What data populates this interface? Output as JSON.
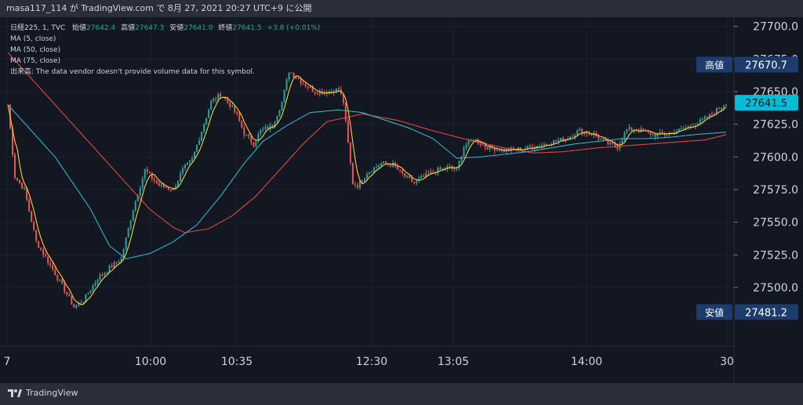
{
  "header": {
    "text": "masa117_114 が TradingView.com で 8月 27, 2021 20:27 UTC+9 に公開"
  },
  "legend": {
    "symbol": "日経225, 1, TVC",
    "open_label": "始値",
    "open": "27642.4",
    "high_label": "高値",
    "high": "27647.3",
    "low_label": "安値",
    "low": "27641.0",
    "close_label": "終値",
    "close": "27641.5",
    "change": "+3.8 (+0.01%)",
    "ma5": "MA (5, close)",
    "ma50": "MA (50, close)",
    "ma75": "MA (75, close)",
    "volume_note": "出来高: The data vendor doesn't provide volume data for this symbol."
  },
  "badges": {
    "high_label": "高値",
    "high_value": "27670.7",
    "low_label": "安値",
    "low_value": "27481.2",
    "last_value": "27641.5"
  },
  "footer": {
    "brand": "TradingView"
  },
  "colors": {
    "background": "#131722",
    "grid": "#1e222d",
    "up": "#26a69a",
    "down": "#ef5350",
    "ma5": "#f5d142",
    "ma50": "#37b0c8",
    "ma75": "#e0483d",
    "last_badge": "#00bcd4",
    "hl_badge": "#1c3c6e"
  },
  "chart_data": {
    "type": "candlestick",
    "y_ticks": [
      27700,
      27675,
      27650,
      27625,
      27600,
      27575,
      27550,
      27525,
      27500
    ],
    "y_tick_labels": [
      "27700.0",
      "27675.0",
      "27650.0",
      "27625.0",
      "27600.0",
      "27575.0",
      "27550.0",
      "27525.0",
      "27500.0"
    ],
    "ylim": [
      27455,
      27707
    ],
    "x_tick_labels": [
      "7",
      "10:00",
      "10:35",
      "12:30",
      "13:05",
      "14:00",
      "30"
    ],
    "close_path": [
      [
        0,
        27640
      ],
      [
        3,
        27585
      ],
      [
        7,
        27575
      ],
      [
        12,
        27535
      ],
      [
        18,
        27517
      ],
      [
        24,
        27498
      ],
      [
        28,
        27485
      ],
      [
        32,
        27490
      ],
      [
        38,
        27507
      ],
      [
        43,
        27515
      ],
      [
        48,
        27522
      ],
      [
        53,
        27560
      ],
      [
        58,
        27590
      ],
      [
        64,
        27578
      ],
      [
        70,
        27575
      ],
      [
        74,
        27590
      ],
      [
        78,
        27598
      ],
      [
        82,
        27620
      ],
      [
        86,
        27642
      ],
      [
        90,
        27648
      ],
      [
        94,
        27640
      ],
      [
        97,
        27632
      ],
      [
        100,
        27618
      ],
      [
        104,
        27610
      ],
      [
        107,
        27620
      ],
      [
        112,
        27624
      ],
      [
        116,
        27642
      ],
      [
        119,
        27666
      ],
      [
        124,
        27658
      ],
      [
        130,
        27650
      ],
      [
        136,
        27650
      ],
      [
        140,
        27652
      ],
      [
        142,
        27642
      ],
      [
        144,
        27610
      ],
      [
        146,
        27580
      ],
      [
        148,
        27578
      ],
      [
        152,
        27588
      ],
      [
        158,
        27595
      ],
      [
        163,
        27594
      ],
      [
        168,
        27585
      ],
      [
        172,
        27580
      ],
      [
        176,
        27585
      ],
      [
        182,
        27590
      ],
      [
        187,
        27592
      ],
      [
        190,
        27590
      ],
      [
        193,
        27608
      ],
      [
        197,
        27614
      ],
      [
        202,
        27608
      ],
      [
        210,
        27605
      ],
      [
        218,
        27606
      ],
      [
        228,
        27610
      ],
      [
        236,
        27614
      ],
      [
        242,
        27620
      ],
      [
        248,
        27617
      ],
      [
        254,
        27610
      ],
      [
        258,
        27608
      ],
      [
        262,
        27621
      ],
      [
        268,
        27620
      ],
      [
        274,
        27617
      ],
      [
        280,
        27618
      ],
      [
        288,
        27623
      ],
      [
        294,
        27628
      ],
      [
        299,
        27634
      ],
      [
        304,
        27642
      ]
    ],
    "ma50_path": [
      [
        0,
        27640
      ],
      [
        20,
        27600
      ],
      [
        35,
        27560
      ],
      [
        43,
        27532
      ],
      [
        50,
        27522
      ],
      [
        60,
        27526
      ],
      [
        70,
        27535
      ],
      [
        80,
        27548
      ],
      [
        90,
        27570
      ],
      [
        100,
        27595
      ],
      [
        108,
        27612
      ],
      [
        118,
        27624
      ],
      [
        128,
        27634
      ],
      [
        140,
        27636
      ],
      [
        150,
        27634
      ],
      [
        160,
        27628
      ],
      [
        170,
        27622
      ],
      [
        180,
        27614
      ],
      [
        190,
        27599
      ],
      [
        200,
        27600
      ],
      [
        210,
        27602
      ],
      [
        220,
        27604
      ],
      [
        230,
        27607
      ],
      [
        240,
        27610
      ],
      [
        250,
        27612
      ],
      [
        260,
        27614
      ],
      [
        270,
        27614
      ],
      [
        280,
        27615
      ],
      [
        290,
        27617
      ],
      [
        304,
        27619
      ]
    ],
    "ma75_path": [
      [
        0,
        27680
      ],
      [
        10,
        27660
      ],
      [
        20,
        27640
      ],
      [
        30,
        27620
      ],
      [
        40,
        27600
      ],
      [
        50,
        27580
      ],
      [
        60,
        27560
      ],
      [
        70,
        27546
      ],
      [
        75,
        27542
      ],
      [
        85,
        27545
      ],
      [
        95,
        27555
      ],
      [
        105,
        27570
      ],
      [
        115,
        27590
      ],
      [
        125,
        27610
      ],
      [
        135,
        27627
      ],
      [
        150,
        27633
      ],
      [
        165,
        27628
      ],
      [
        180,
        27620
      ],
      [
        195,
        27613
      ],
      [
        210,
        27607
      ],
      [
        222,
        27603
      ],
      [
        235,
        27604
      ],
      [
        250,
        27607
      ],
      [
        265,
        27609
      ],
      [
        280,
        27611
      ],
      [
        295,
        27613
      ],
      [
        304,
        27617
      ]
    ]
  }
}
